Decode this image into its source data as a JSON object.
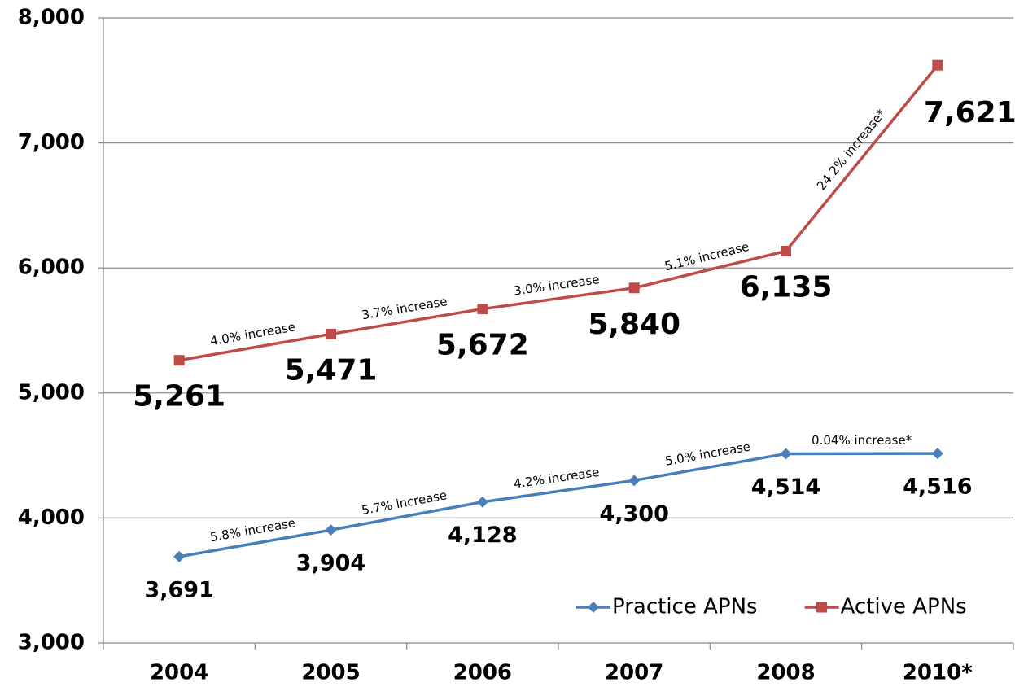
{
  "chart_data": {
    "type": "line",
    "categories": [
      "2004",
      "2005",
      "2006",
      "2007",
      "2008",
      "2010*"
    ],
    "series": [
      {
        "name": "Practice APNs",
        "color": "#4a7ebb",
        "marker": "diamond",
        "values": [
          3691,
          3904,
          4128,
          4300,
          4514,
          4516
        ],
        "value_labels": [
          "3,691",
          "3,904",
          "4,128",
          "4,300",
          "4,514",
          "4,516"
        ],
        "increase_labels": [
          "5.8% increase",
          "5.7% increase",
          "4.2% increase",
          "5.0% increase",
          "0.04% increase*"
        ]
      },
      {
        "name": "Active APNs",
        "color": "#be4b48",
        "marker": "square",
        "values": [
          5261,
          5471,
          5672,
          5840,
          6135,
          7621
        ],
        "value_labels": [
          "5,261",
          "5,471",
          "5,672",
          "5,840",
          "6,135",
          "7,621"
        ],
        "increase_labels": [
          "4.0% increase",
          "3.7% increase",
          "3.0% increase",
          "5.1% increase",
          "24.2% increase*"
        ]
      }
    ],
    "ylim": [
      3000,
      8000
    ],
    "yticks": [
      {
        "value": 3000,
        "label": "3,000"
      },
      {
        "value": 4000,
        "label": "4,000"
      },
      {
        "value": 5000,
        "label": "5,000"
      },
      {
        "value": 6000,
        "label": "6,000"
      },
      {
        "value": 7000,
        "label": "7,000"
      },
      {
        "value": 8000,
        "label": "8,000"
      }
    ],
    "grid": true,
    "legend": "bottom-right"
  }
}
